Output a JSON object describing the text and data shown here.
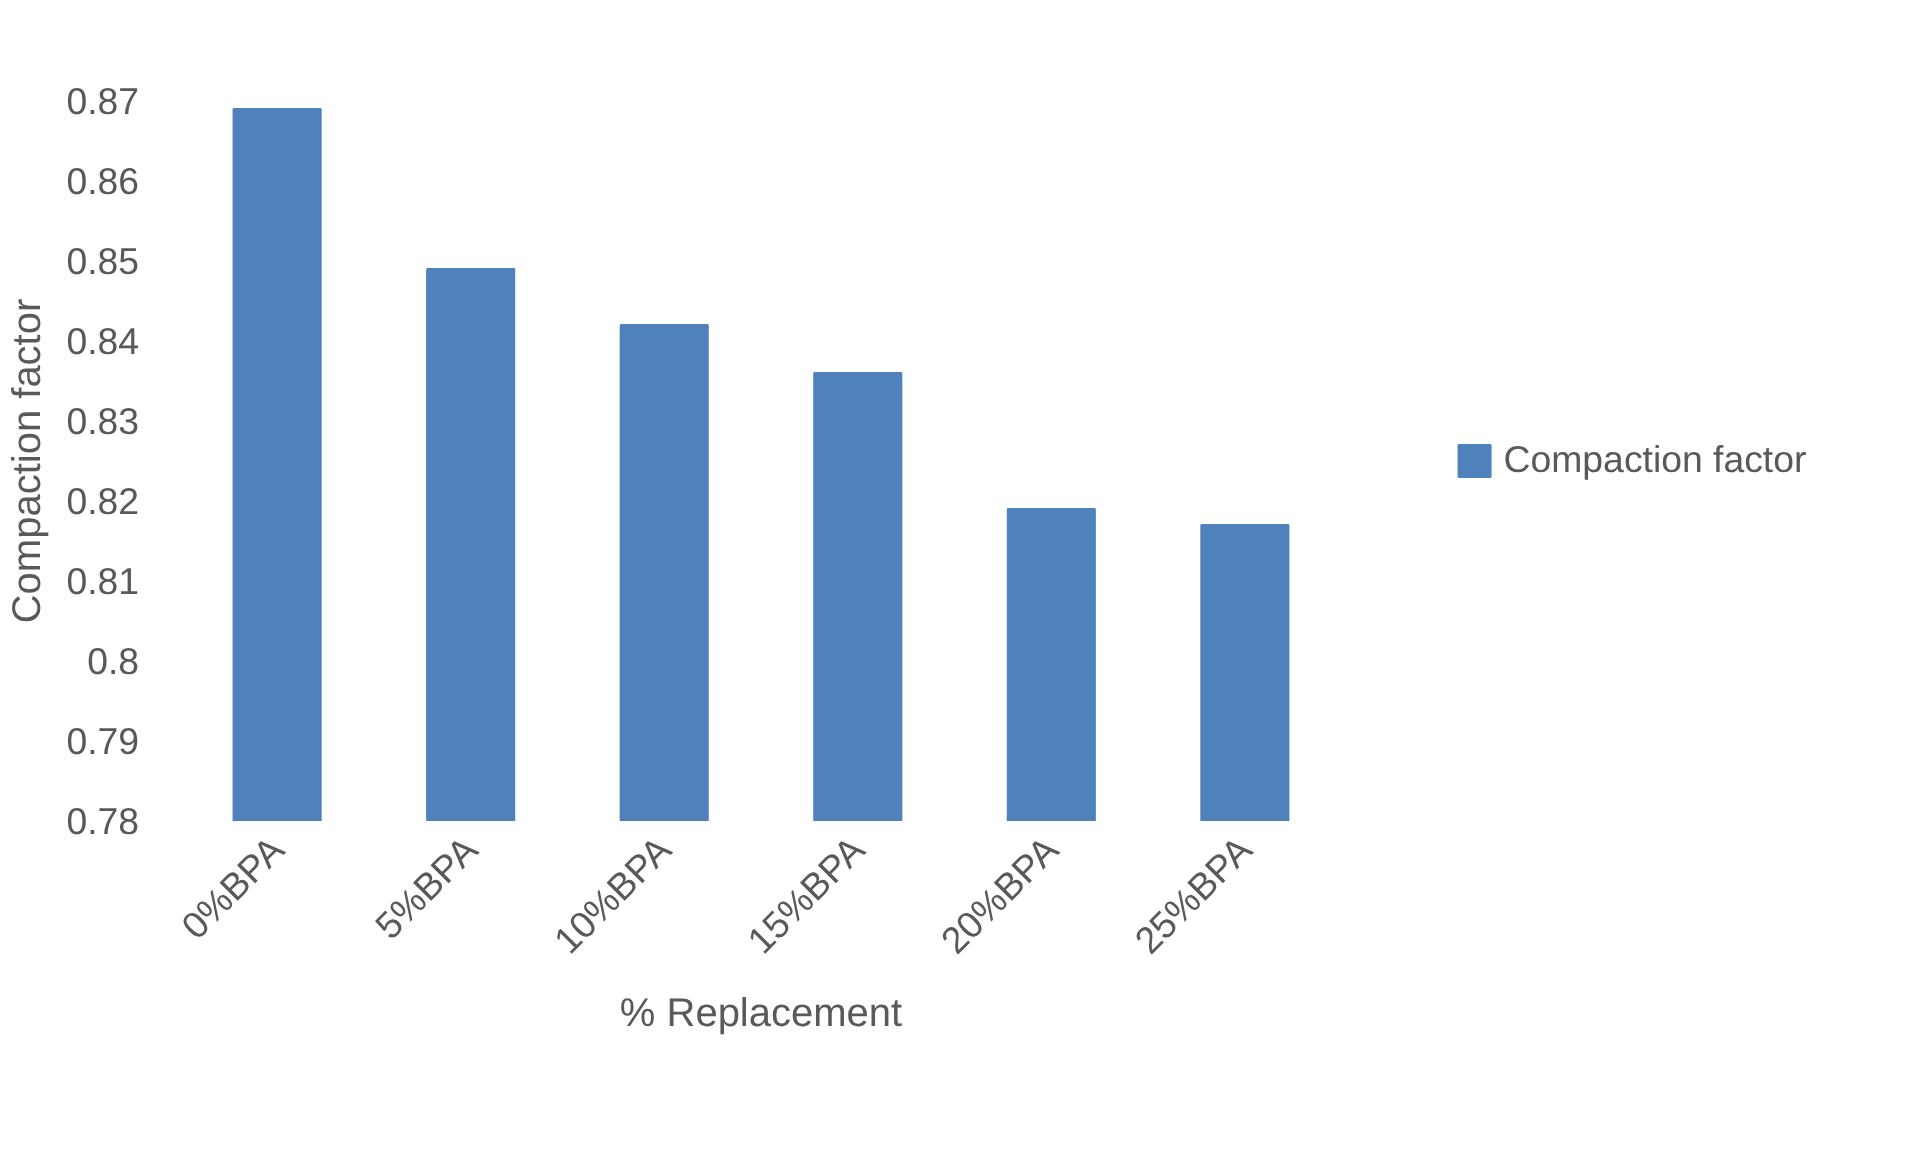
{
  "chart_data": {
    "type": "bar",
    "xlabel": "% Replacement",
    "ylabel": "Compaction factor",
    "categories": [
      "0%BPA",
      "5%BPA",
      "10%BPA",
      "15%BPA",
      "20%BPA",
      "25%BPA"
    ],
    "series": [
      {
        "name": "Compaction factor",
        "color": "#4f81bd",
        "values": [
          0.869,
          0.849,
          0.842,
          0.836,
          0.819,
          0.817
        ]
      }
    ],
    "ylim": [
      0.78,
      0.87
    ],
    "yticks": [
      0.78,
      0.79,
      0.8,
      0.81,
      0.82,
      0.83,
      0.84,
      0.85,
      0.86,
      0.87
    ],
    "grid": false,
    "legend": "right"
  }
}
